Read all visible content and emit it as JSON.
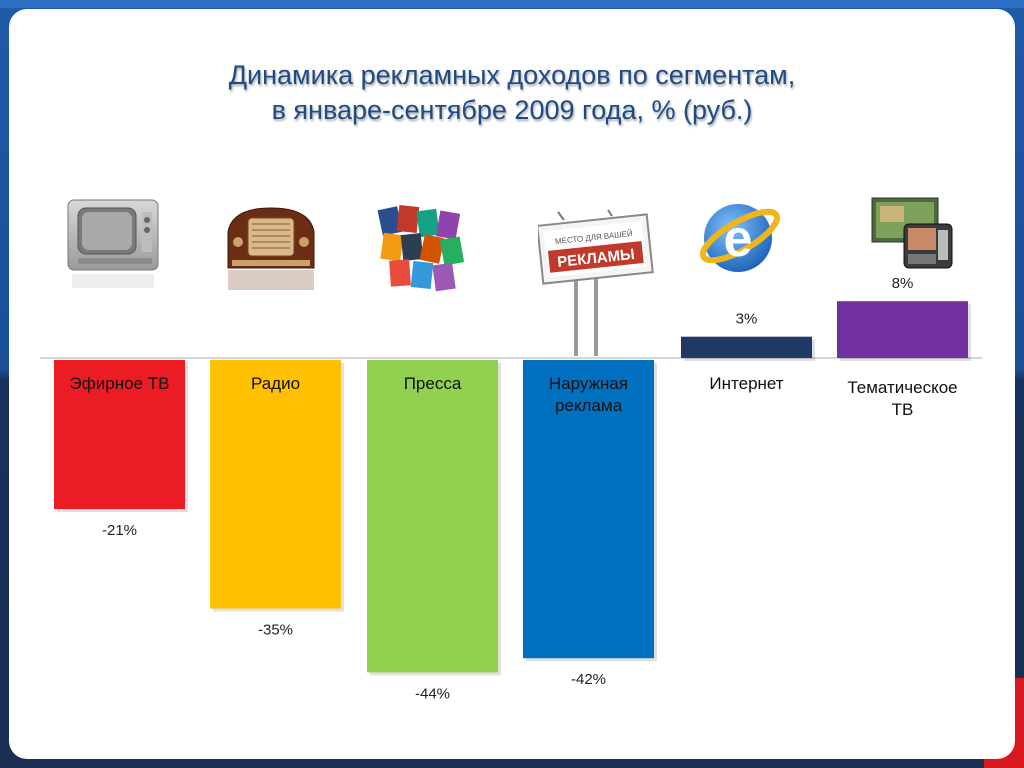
{
  "title_line1": "Динамика рекламных доходов по сегментам,",
  "title_line2": "в январе-сентябре 2009 года, % (руб.)",
  "chart_data": {
    "type": "bar",
    "title": "Динамика рекламных доходов по сегментам, в январе-сентябре 2009 года, % (руб.)",
    "categories": [
      [
        "Эфирное ТВ"
      ],
      [
        "Радио"
      ],
      [
        "Пресса"
      ],
      [
        "Наружная",
        "реклама"
      ],
      [
        "Интернет"
      ],
      [
        "Тематическое",
        "ТВ"
      ]
    ],
    "values": [
      -21,
      -35,
      -44,
      -42,
      3,
      8
    ],
    "value_labels": [
      "-21%",
      "-35%",
      "-44%",
      "-42%",
      "3%",
      "8%"
    ],
    "colors": [
      "#ec1c24",
      "#ffc000",
      "#92d050",
      "#0070c0",
      "#1f3864",
      "#7030a0"
    ],
    "ylim": [
      -50,
      10
    ],
    "grid": false,
    "legend": "none"
  },
  "icons": [
    "tv-icon",
    "radio-icon",
    "magazines-icon",
    "billboard-icon",
    "internet-explorer-icon",
    "thematic-tv-icon"
  ],
  "billboard": {
    "line1": "МЕСТО ДЛЯ ВАШЕЙ",
    "line2": "РЕКЛАМЫ"
  }
}
